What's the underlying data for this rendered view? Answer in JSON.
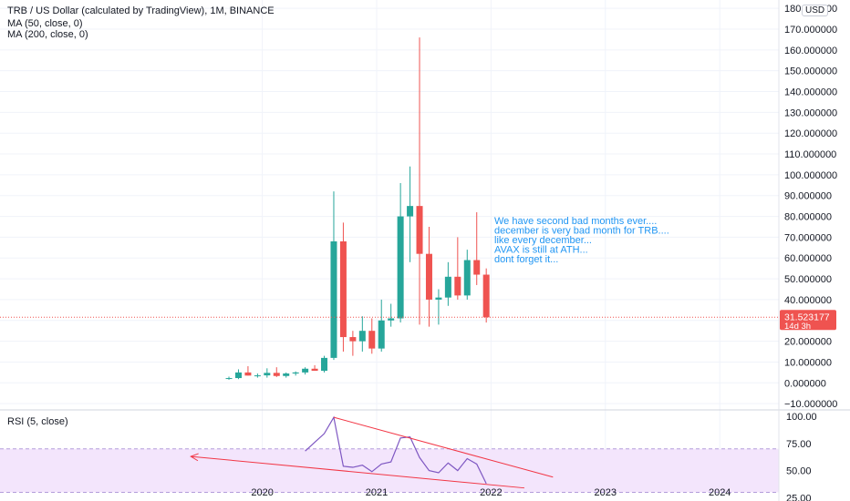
{
  "header": {
    "title": "TRB / US Dollar (calculated by TradingView), 1M, BINANCE",
    "ma50": "MA (50, close, 0)",
    "ma200": "MA (200, close, 0)",
    "currency": "USD"
  },
  "colors": {
    "up": "#26a69a",
    "down": "#ef5350",
    "grid": "#f0f3fa",
    "annotation": "#2196f3",
    "price_line": "#ef5350",
    "rsi_line": "#7e57c2",
    "rsi_band": "#f3e5fc",
    "trendline": "#f23645"
  },
  "price_tag": {
    "value": "31.523177",
    "countdown": "14d 3h"
  },
  "annotation": [
    "We have second bad months ever....",
    "december is very bad month for TRB....",
    "like every december...",
    "AVAX is still at ATH...",
    "dont forget it..."
  ],
  "rsi_panel": {
    "label": "RSI (5, close)",
    "ticks": [
      "100.00",
      "75.00",
      "50.00",
      "25.00"
    ]
  },
  "chart_data": [
    {
      "type": "candlestick",
      "title": "TRB / US Dollar (calculated by TradingView), 1M, BINANCE",
      "y_ticks": [
        "180.000000",
        "170.000000",
        "160.000000",
        "150.000000",
        "140.000000",
        "130.000000",
        "120.000000",
        "110.000000",
        "100.000000",
        "90.000000",
        "80.000000",
        "70.000000",
        "60.000000",
        "50.000000",
        "40.000000",
        "30.000000",
        "20.000000",
        "10.000000",
        "0.000000",
        "−10.000000"
      ],
      "x_ticks": [
        "2020",
        "2021",
        "2022",
        "2023",
        "2024"
      ],
      "ylim": [
        -13,
        184
      ],
      "grid": true,
      "last_price": 31.523177,
      "candles": [
        {
          "date": "2019-09",
          "open": 2.0,
          "high": 3.0,
          "low": 1.5,
          "close": 2.3
        },
        {
          "date": "2019-10",
          "open": 2.3,
          "high": 6.5,
          "low": 1.8,
          "close": 5.0
        },
        {
          "date": "2019-11",
          "open": 5.0,
          "high": 8.0,
          "low": 3.5,
          "close": 3.5
        },
        {
          "date": "2019-12",
          "open": 3.5,
          "high": 4.5,
          "low": 2.5,
          "close": 3.6
        },
        {
          "date": "2020-01",
          "open": 3.6,
          "high": 7.0,
          "low": 2.5,
          "close": 4.8
        },
        {
          "date": "2020-02",
          "open": 4.8,
          "high": 7.5,
          "low": 2.8,
          "close": 3.3
        },
        {
          "date": "2020-03",
          "open": 3.3,
          "high": 5.0,
          "low": 2.5,
          "close": 4.5
        },
        {
          "date": "2020-04",
          "open": 4.5,
          "high": 5.5,
          "low": 3.5,
          "close": 5.0
        },
        {
          "date": "2020-05",
          "open": 5.0,
          "high": 7.5,
          "low": 4.0,
          "close": 6.8
        },
        {
          "date": "2020-06",
          "open": 6.8,
          "high": 8.5,
          "low": 5.8,
          "close": 5.8
        },
        {
          "date": "2020-07",
          "open": 5.8,
          "high": 13.0,
          "low": 5.0,
          "close": 12.0
        },
        {
          "date": "2020-08",
          "open": 12.0,
          "high": 92.0,
          "low": 11.0,
          "close": 68.0
        },
        {
          "date": "2020-09",
          "open": 68.0,
          "high": 77.0,
          "low": 15.0,
          "close": 22.0
        },
        {
          "date": "2020-10",
          "open": 22.0,
          "high": 25.0,
          "low": 13.0,
          "close": 20.0
        },
        {
          "date": "2020-11",
          "open": 20.0,
          "high": 32.0,
          "low": 15.0,
          "close": 25.0
        },
        {
          "date": "2020-12",
          "open": 25.0,
          "high": 31.0,
          "low": 14.0,
          "close": 16.5
        },
        {
          "date": "2021-01",
          "open": 16.5,
          "high": 40.0,
          "low": 15.0,
          "close": 30.0
        },
        {
          "date": "2021-02",
          "open": 30.0,
          "high": 38.0,
          "low": 27.0,
          "close": 31.0
        },
        {
          "date": "2021-03",
          "open": 31.0,
          "high": 96.0,
          "low": 29.0,
          "close": 80.0
        },
        {
          "date": "2021-04",
          "open": 80.0,
          "high": 104.0,
          "low": 58.0,
          "close": 85.0
        },
        {
          "date": "2021-05",
          "open": 85.0,
          "high": 166.0,
          "low": 28.0,
          "close": 62.0
        },
        {
          "date": "2021-06",
          "open": 62.0,
          "high": 75.0,
          "low": 27.0,
          "close": 40.0
        },
        {
          "date": "2021-07",
          "open": 40.0,
          "high": 45.0,
          "low": 28.0,
          "close": 41.0
        },
        {
          "date": "2021-08",
          "open": 41.0,
          "high": 58.0,
          "low": 37.0,
          "close": 51.0
        },
        {
          "date": "2021-09",
          "open": 51.0,
          "high": 70.0,
          "low": 40.0,
          "close": 42.0
        },
        {
          "date": "2021-10",
          "open": 42.0,
          "high": 64.0,
          "low": 40.0,
          "close": 59.0
        },
        {
          "date": "2021-11",
          "open": 59.0,
          "high": 82.0,
          "low": 47.0,
          "close": 52.0
        },
        {
          "date": "2021-12",
          "open": 52.0,
          "high": 55.0,
          "low": 29.0,
          "close": 31.5
        }
      ]
    },
    {
      "type": "line",
      "title": "RSI (5, close)",
      "ylim": [
        22,
        105
      ],
      "y_ticks": [
        "100.00",
        "75.00",
        "50.00",
        "25.00"
      ],
      "band": [
        30,
        70
      ],
      "series": [
        {
          "values": [
            {
              "date": "2020-05",
              "value": 68
            },
            {
              "date": "2020-06",
              "value": 76
            },
            {
              "date": "2020-07",
              "value": 84
            },
            {
              "date": "2020-08",
              "value": 99
            },
            {
              "date": "2020-09",
              "value": 54
            },
            {
              "date": "2020-10",
              "value": 53
            },
            {
              "date": "2020-11",
              "value": 55
            },
            {
              "date": "2020-12",
              "value": 49
            },
            {
              "date": "2021-01",
              "value": 56
            },
            {
              "date": "2021-02",
              "value": 58
            },
            {
              "date": "2021-03",
              "value": 80
            },
            {
              "date": "2021-04",
              "value": 81
            },
            {
              "date": "2021-05",
              "value": 62
            },
            {
              "date": "2021-06",
              "value": 50
            },
            {
              "date": "2021-07",
              "value": 48
            },
            {
              "date": "2021-08",
              "value": 57
            },
            {
              "date": "2021-09",
              "value": 50
            },
            {
              "date": "2021-10",
              "value": 61
            },
            {
              "date": "2021-11",
              "value": 56
            },
            {
              "date": "2021-12",
              "value": 38
            }
          ]
        }
      ],
      "trendlines": [
        {
          "from": {
            "date": "2020-08",
            "value": 99
          },
          "to": {
            "date": "2022-07",
            "value": 44
          }
        },
        {
          "from": {
            "date": "2019-05",
            "value": 63
          },
          "to": {
            "date": "2022-04",
            "value": 34
          }
        }
      ]
    }
  ]
}
